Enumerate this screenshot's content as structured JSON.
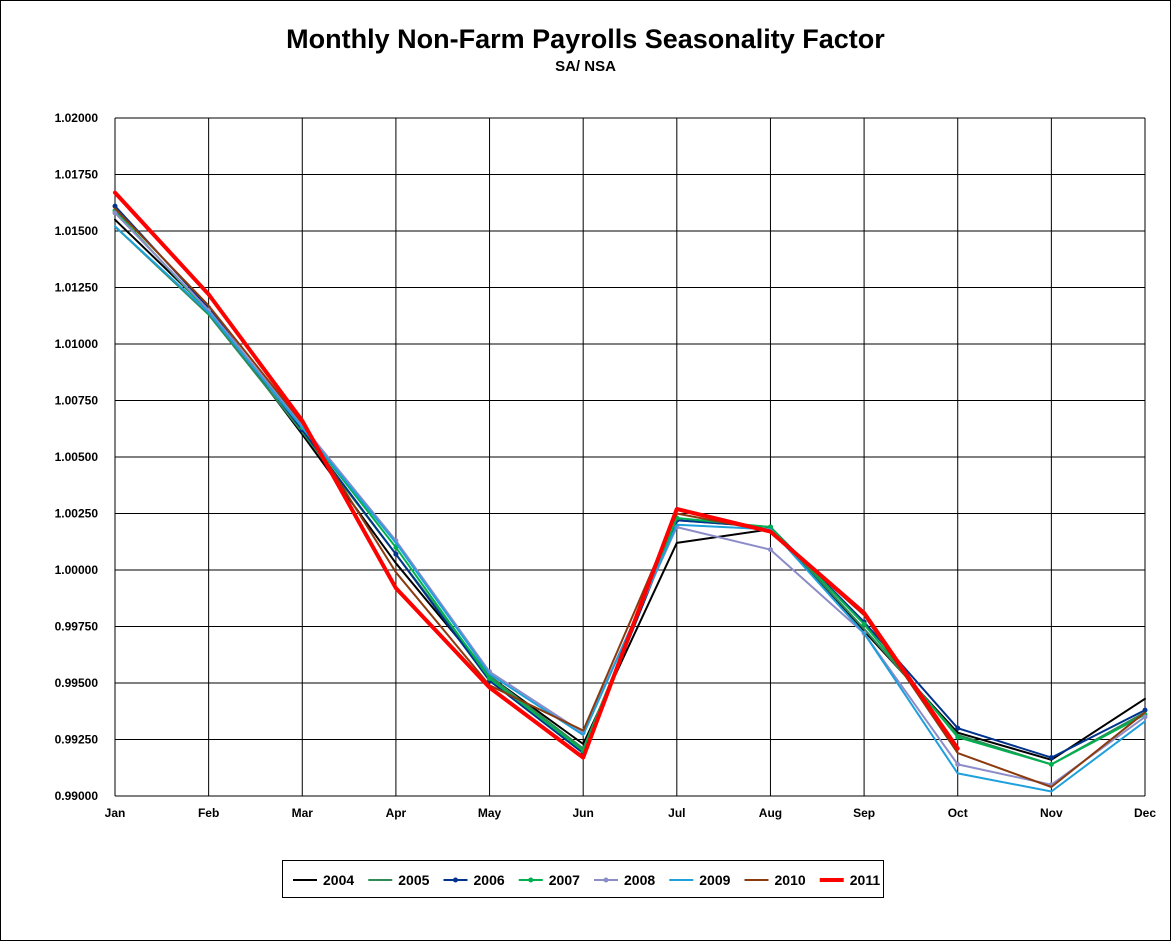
{
  "chart_data": {
    "type": "line",
    "title": "Monthly Non-Farm Payrolls Seasonality Factor",
    "subtitle": "SA/ NSA",
    "categories": [
      "Jan",
      "Feb",
      "Mar",
      "Apr",
      "May",
      "Jun",
      "Jul",
      "Aug",
      "Sep",
      "Oct",
      "Nov",
      "Dec"
    ],
    "ylim": [
      0.99,
      1.02
    ],
    "ytick_step": 0.0025,
    "ytick_labels": [
      "0.99000",
      "0.99250",
      "0.99500",
      "0.99750",
      "1.00000",
      "1.00250",
      "1.00500",
      "1.00750",
      "1.01000",
      "1.01250",
      "1.01500",
      "1.01750",
      "1.02000"
    ],
    "grid": true,
    "legend_position": "bottom",
    "series": [
      {
        "name": "2004",
        "color": "#000000",
        "marker": "none",
        "values": [
          1.0155,
          1.0115,
          1.006,
          1.0003,
          0.9953,
          0.9923,
          1.0012,
          1.0018,
          0.9973,
          0.9928,
          0.9916,
          0.9943
        ]
      },
      {
        "name": "2005",
        "color": "#2E8B57",
        "marker": "none",
        "values": [
          1.0152,
          1.0113,
          1.0061,
          1.0007,
          0.9953,
          0.9921,
          1.0022,
          1.0019,
          0.9974,
          0.9927,
          0.9914,
          0.9937
        ]
      },
      {
        "name": "2006",
        "color": "#00338D",
        "marker": "dot",
        "values": [
          1.0161,
          1.0116,
          1.0062,
          1.0007,
          0.9951,
          0.9919,
          1.0022,
          1.0019,
          0.9977,
          0.993,
          0.9917,
          0.9938
        ]
      },
      {
        "name": "2007",
        "color": "#00B050",
        "marker": "dot",
        "values": [
          1.0159,
          1.0114,
          1.0063,
          1.001,
          0.9952,
          0.992,
          1.0023,
          1.0019,
          0.9976,
          0.9926,
          0.9914,
          0.9936
        ]
      },
      {
        "name": "2008",
        "color": "#8C8CC8",
        "marker": "dot",
        "values": [
          1.0158,
          1.0115,
          1.0064,
          1.0013,
          0.9955,
          0.9928,
          1.0019,
          1.0009,
          0.9972,
          0.9914,
          0.9905,
          0.9935
        ]
      },
      {
        "name": "2009",
        "color": "#1EA0DC",
        "marker": "none",
        "values": [
          1.0152,
          1.0114,
          1.0063,
          1.0012,
          0.9954,
          0.9927,
          1.002,
          1.0018,
          0.9972,
          0.991,
          0.9902,
          0.9933
        ]
      },
      {
        "name": "2010",
        "color": "#8B3A0E",
        "marker": "none",
        "values": [
          1.016,
          1.0117,
          1.0065,
          0.9999,
          0.9949,
          0.9929,
          1.0025,
          1.0017,
          0.998,
          0.9919,
          0.9904,
          0.9937
        ]
      },
      {
        "name": "2011",
        "color": "#FF0000",
        "marker": "none",
        "bold": true,
        "values": [
          1.0167,
          1.0122,
          1.0066,
          0.9992,
          0.9948,
          0.9917,
          1.0027,
          1.0017,
          0.9981,
          0.9921,
          null,
          null
        ]
      }
    ]
  }
}
